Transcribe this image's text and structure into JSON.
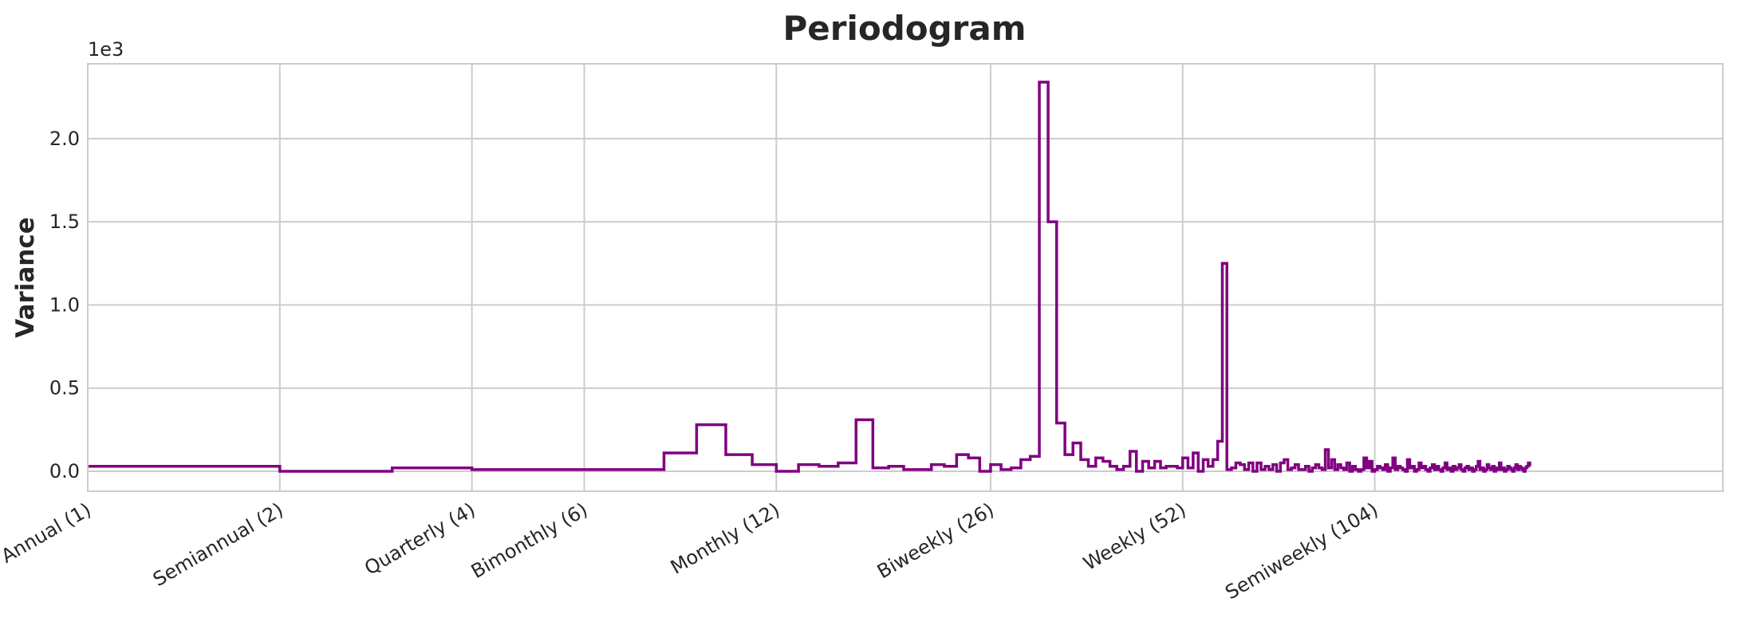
{
  "chart_data": {
    "type": "line",
    "drawstyle": "steps-post",
    "title": "Periodogram",
    "xlabel": "",
    "ylabel": "Variance",
    "y_offset_label": "1e3",
    "xscale": "log",
    "xlim": [
      1,
      365.2425
    ],
    "ylim": [
      -0.12,
      2.45
    ],
    "grid": true,
    "line_color": "#800080",
    "x_ticks": [
      {
        "value": 1,
        "label": "Annual (1)"
      },
      {
        "value": 2,
        "label": "Semiannual (2)"
      },
      {
        "value": 4,
        "label": "Quarterly (4)"
      },
      {
        "value": 6,
        "label": "Bimonthly (6)"
      },
      {
        "value": 12,
        "label": "Monthly (12)"
      },
      {
        "value": 26,
        "label": "Biweekly (26)"
      },
      {
        "value": 52,
        "label": "Weekly (52)"
      },
      {
        "value": 104,
        "label": "Semiweekly (104)"
      }
    ],
    "y_ticks": [
      {
        "value": 0.0,
        "label": "0.0"
      },
      {
        "value": 0.5,
        "label": "0.5"
      },
      {
        "value": 1.0,
        "label": "1.0"
      },
      {
        "value": 1.5,
        "label": "1.5"
      },
      {
        "value": 2.0,
        "label": "2.0"
      }
    ],
    "series": [
      {
        "x": [
          1,
          2,
          3,
          4,
          5,
          6,
          7,
          8,
          9,
          10,
          11,
          12,
          13,
          14,
          15,
          16,
          17,
          18,
          19,
          20,
          21,
          22,
          23,
          24,
          25,
          26,
          27,
          28,
          29,
          30,
          31,
          32,
          33,
          34,
          35,
          36,
          37,
          38,
          39,
          40,
          41,
          42,
          43,
          44,
          45,
          46,
          47,
          48,
          49,
          50,
          51,
          52,
          53,
          54,
          55,
          56,
          57,
          58,
          59,
          60,
          61,
          62,
          63,
          64,
          65,
          66,
          67,
          68,
          69,
          70,
          71,
          72,
          73,
          74,
          75,
          76,
          77,
          78,
          79,
          80,
          81,
          82,
          83,
          84,
          85,
          86,
          87,
          88,
          89,
          90,
          91,
          92,
          93,
          94,
          95,
          96,
          97,
          98,
          99,
          100,
          101,
          102,
          103,
          104,
          105,
          106,
          107,
          108,
          109,
          110,
          111,
          112,
          113,
          114,
          115,
          116,
          117,
          118,
          119,
          120,
          121,
          122,
          123,
          124,
          125,
          126,
          127,
          128,
          129,
          130,
          131,
          132,
          133,
          134,
          135,
          136,
          137,
          138,
          139,
          140,
          141,
          142,
          143,
          144,
          145,
          146,
          147,
          148,
          149,
          150,
          151,
          152,
          153,
          154,
          155,
          156,
          157,
          158,
          159,
          160,
          161,
          162,
          163,
          164,
          165,
          166,
          167,
          168,
          169,
          170,
          171,
          172,
          173,
          174,
          175,
          176,
          177,
          178,
          179,
          180,
          181,
          182
        ],
        "y": [
          0.03,
          0.0,
          0.02,
          0.01,
          0.01,
          0.01,
          0.01,
          0.11,
          0.28,
          0.1,
          0.04,
          0.0,
          0.04,
          0.03,
          0.05,
          0.31,
          0.02,
          0.03,
          0.01,
          0.01,
          0.04,
          0.03,
          0.1,
          0.08,
          0.0,
          0.04,
          0.01,
          0.02,
          0.07,
          0.09,
          2.34,
          1.5,
          0.29,
          0.1,
          0.17,
          0.07,
          0.03,
          0.08,
          0.06,
          0.03,
          0.01,
          0.03,
          0.12,
          0.0,
          0.06,
          0.02,
          0.06,
          0.02,
          0.03,
          0.03,
          0.02,
          0.08,
          0.02,
          0.11,
          0.0,
          0.07,
          0.03,
          0.07,
          0.18,
          1.25,
          0.01,
          0.02,
          0.05,
          0.04,
          0.01,
          0.05,
          0.0,
          0.05,
          0.01,
          0.03,
          0.01,
          0.04,
          0.0,
          0.05,
          0.07,
          0.01,
          0.02,
          0.04,
          0.01,
          0.01,
          0.03,
          0.0,
          0.02,
          0.04,
          0.02,
          0.01,
          0.13,
          0.02,
          0.07,
          0.01,
          0.04,
          0.02,
          0.01,
          0.05,
          0.0,
          0.03,
          0.01,
          0.0,
          0.01,
          0.08,
          0.02,
          0.06,
          0.0,
          0.01,
          0.03,
          0.02,
          0.01,
          0.04,
          0.0,
          0.02,
          0.08,
          0.01,
          0.03,
          0.02,
          0.01,
          0.0,
          0.07,
          0.02,
          0.03,
          0.0,
          0.01,
          0.05,
          0.02,
          0.03,
          0.01,
          0.0,
          0.02,
          0.04,
          0.01,
          0.03,
          0.01,
          0.0,
          0.02,
          0.05,
          0.01,
          0.02,
          0.0,
          0.03,
          0.01,
          0.02,
          0.04,
          0.01,
          0.0,
          0.02,
          0.03,
          0.01,
          0.02,
          0.0,
          0.01,
          0.03,
          0.06,
          0.01,
          0.02,
          0.0,
          0.01,
          0.04,
          0.02,
          0.01,
          0.03,
          0.0,
          0.02,
          0.01,
          0.05,
          0.01,
          0.02,
          0.0,
          0.01,
          0.03,
          0.02,
          0.01,
          0.0,
          0.02,
          0.04,
          0.01,
          0.03,
          0.02,
          0.01,
          0.0,
          0.02,
          0.03,
          0.05,
          0.03
        ]
      }
    ]
  }
}
